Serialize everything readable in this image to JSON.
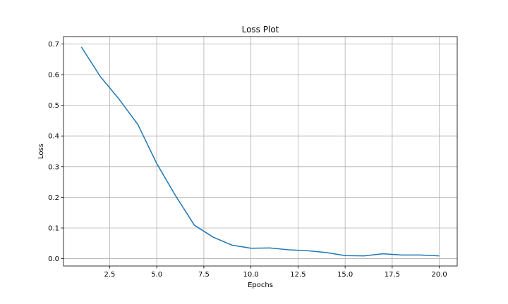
{
  "chart_data": {
    "type": "line",
    "title": "Loss Plot",
    "xlabel": "Epochs",
    "ylabel": "Loss",
    "xlim": [
      0.05,
      20.95
    ],
    "ylim": [
      -0.0239,
      0.7239
    ],
    "xticks": [
      2.5,
      5.0,
      7.5,
      10.0,
      12.5,
      15.0,
      17.5,
      20.0
    ],
    "xtick_labels": [
      "2.5",
      "5.0",
      "7.5",
      "10.0",
      "12.5",
      "15.0",
      "17.5",
      "20.0"
    ],
    "yticks": [
      0.0,
      0.1,
      0.2,
      0.3,
      0.4,
      0.5,
      0.6,
      0.7
    ],
    "ytick_labels": [
      "0.0",
      "0.1",
      "0.2",
      "0.3",
      "0.4",
      "0.5",
      "0.6",
      "0.7"
    ],
    "grid": true,
    "line_color": "#1f77b4",
    "series": [
      {
        "x": [
          1,
          2,
          3,
          4,
          5,
          6,
          7,
          8,
          9,
          10,
          11,
          12,
          13,
          14,
          15,
          16,
          17,
          18,
          19,
          20
        ],
        "values": [
          0.69,
          0.594,
          0.52,
          0.437,
          0.31,
          0.205,
          0.109,
          0.07,
          0.044,
          0.034,
          0.035,
          0.029,
          0.026,
          0.02,
          0.01,
          0.009,
          0.016,
          0.012,
          0.012,
          0.009
        ]
      }
    ]
  }
}
